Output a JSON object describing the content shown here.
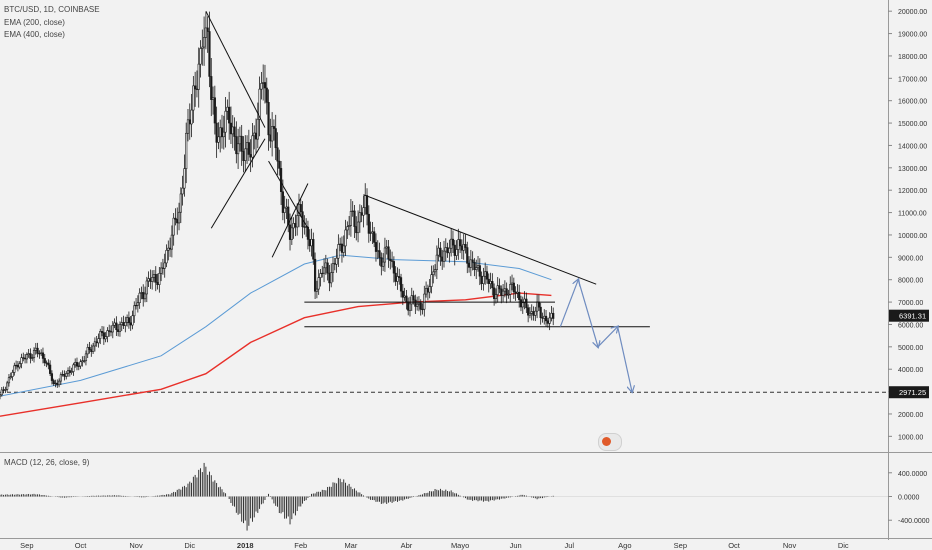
{
  "header": {
    "symbol": "BTC/USD, 1D, COINBASE",
    "indicator_1": "EMA (200, close)",
    "indicator_2": "EMA (400, close)",
    "macd": "MACD (12, 26, close, 9)"
  },
  "colors": {
    "background": "#f2f2f2",
    "candle": "#1a1a1a",
    "ema200": "#5b9bd5",
    "ema400": "#e8302a",
    "forecast": "#6f8cc0",
    "price_tag_bg": "#1a1a1a"
  },
  "chart_data": [
    {
      "type": "candlestick",
      "y_axis": {
        "ticks": [
          1000,
          2000,
          3000,
          4000,
          5000,
          6000,
          7000,
          8000,
          9000,
          10000,
          11000,
          12000,
          13000,
          14000,
          15000,
          16000,
          17000,
          18000,
          19000,
          20000
        ],
        "tick_labels": [
          "1000.00",
          "2000.00",
          "3000.00",
          "4000.00",
          "5000.00",
          "6000.00",
          "7000.00",
          "8000.00",
          "9000.00",
          "10000.00",
          "11000.00",
          "12000.00",
          "13000.00",
          "14000.00",
          "15000.00",
          "16000.00",
          "17000.00",
          "18000.00",
          "19000.00",
          "20000.00"
        ],
        "ylim": [
          300,
          20500
        ]
      },
      "x_axis": {
        "labels": [
          "Sep",
          "Oct",
          "Nov",
          "Dic",
          "2018",
          "Feb",
          "Mar",
          "Abr",
          "Mayo",
          "Jun",
          "Jul",
          "Ago",
          "Sep",
          "Oct",
          "Nov",
          "Dic"
        ],
        "label_days": [
          15,
          45,
          76,
          106,
          137,
          168,
          196,
          227,
          257,
          288,
          318,
          349,
          380,
          410,
          441,
          471
        ]
      },
      "price_tags": [
        {
          "label": "6391.31",
          "value": 6391.31
        },
        {
          "label": "2971.25",
          "value": 2971.25
        }
      ],
      "closes": [
        {
          "day": 0,
          "value": 2800
        },
        {
          "day": 10,
          "value": 4300
        },
        {
          "day": 20,
          "value": 4800
        },
        {
          "day": 25,
          "value": 4500
        },
        {
          "day": 30,
          "value": 3300
        },
        {
          "day": 38,
          "value": 3900
        },
        {
          "day": 45,
          "value": 4300
        },
        {
          "day": 55,
          "value": 5400
        },
        {
          "day": 65,
          "value": 5900
        },
        {
          "day": 72,
          "value": 6100
        },
        {
          "day": 78,
          "value": 7200
        },
        {
          "day": 84,
          "value": 8000
        },
        {
          "day": 90,
          "value": 8200
        },
        {
          "day": 95,
          "value": 9800
        },
        {
          "day": 100,
          "value": 11000
        },
        {
          "day": 104,
          "value": 14000
        },
        {
          "day": 108,
          "value": 16500
        },
        {
          "day": 112,
          "value": 17500
        },
        {
          "day": 114,
          "value": 19500
        },
        {
          "day": 116,
          "value": 19000
        },
        {
          "day": 118,
          "value": 16000
        },
        {
          "day": 120,
          "value": 14800
        },
        {
          "day": 124,
          "value": 14500
        },
        {
          "day": 128,
          "value": 15500
        },
        {
          "day": 132,
          "value": 13800
        },
        {
          "day": 136,
          "value": 14000
        },
        {
          "day": 140,
          "value": 13500
        },
        {
          "day": 144,
          "value": 15500
        },
        {
          "day": 147,
          "value": 17000
        },
        {
          "day": 150,
          "value": 15000
        },
        {
          "day": 154,
          "value": 14000
        },
        {
          "day": 158,
          "value": 11500
        },
        {
          "day": 162,
          "value": 10000
        },
        {
          "day": 166,
          "value": 11000
        },
        {
          "day": 170,
          "value": 10500
        },
        {
          "day": 174,
          "value": 9500
        },
        {
          "day": 176,
          "value": 7600
        },
        {
          "day": 180,
          "value": 8500
        },
        {
          "day": 184,
          "value": 8200
        },
        {
          "day": 188,
          "value": 9000
        },
        {
          "day": 192,
          "value": 9800
        },
        {
          "day": 196,
          "value": 10800
        },
        {
          "day": 200,
          "value": 10500
        },
        {
          "day": 204,
          "value": 11400
        },
        {
          "day": 208,
          "value": 9800
        },
        {
          "day": 212,
          "value": 8900
        },
        {
          "day": 216,
          "value": 9200
        },
        {
          "day": 220,
          "value": 8500
        },
        {
          "day": 224,
          "value": 7500
        },
        {
          "day": 228,
          "value": 6900
        },
        {
          "day": 232,
          "value": 7000
        },
        {
          "day": 236,
          "value": 6800
        },
        {
          "day": 240,
          "value": 7900
        },
        {
          "day": 244,
          "value": 8900
        },
        {
          "day": 248,
          "value": 9300
        },
        {
          "day": 252,
          "value": 9400
        },
        {
          "day": 256,
          "value": 9600
        },
        {
          "day": 260,
          "value": 9200
        },
        {
          "day": 264,
          "value": 8600
        },
        {
          "day": 268,
          "value": 8300
        },
        {
          "day": 272,
          "value": 8000
        },
        {
          "day": 276,
          "value": 7500
        },
        {
          "day": 280,
          "value": 7400
        },
        {
          "day": 284,
          "value": 7600
        },
        {
          "day": 288,
          "value": 7500
        },
        {
          "day": 292,
          "value": 6900
        },
        {
          "day": 296,
          "value": 6500
        },
        {
          "day": 300,
          "value": 6700
        },
        {
          "day": 304,
          "value": 6300
        },
        {
          "day": 307,
          "value": 6100
        },
        {
          "day": 309,
          "value": 6391
        }
      ],
      "series": [
        {
          "name": "EMA (200, close)",
          "points": [
            {
              "day": 0,
              "value": 2800
            },
            {
              "day": 45,
              "value": 3500
            },
            {
              "day": 90,
              "value": 4600
            },
            {
              "day": 115,
              "value": 5900
            },
            {
              "day": 140,
              "value": 7400
            },
            {
              "day": 170,
              "value": 8700
            },
            {
              "day": 190,
              "value": 9100
            },
            {
              "day": 220,
              "value": 8900
            },
            {
              "day": 260,
              "value": 8800
            },
            {
              "day": 290,
              "value": 8500
            },
            {
              "day": 308,
              "value": 8000
            }
          ]
        },
        {
          "name": "EMA (400, close)",
          "points": [
            {
              "day": 0,
              "value": 1900
            },
            {
              "day": 45,
              "value": 2500
            },
            {
              "day": 90,
              "value": 3100
            },
            {
              "day": 115,
              "value": 3800
            },
            {
              "day": 140,
              "value": 5200
            },
            {
              "day": 170,
              "value": 6300
            },
            {
              "day": 200,
              "value": 6800
            },
            {
              "day": 230,
              "value": 7000
            },
            {
              "day": 260,
              "value": 7100
            },
            {
              "day": 290,
              "value": 7400
            },
            {
              "day": 308,
              "value": 7300
            }
          ]
        }
      ],
      "trendlines": [
        {
          "from": {
            "day": 115,
            "value": 20000
          },
          "to": {
            "day": 148,
            "value": 14800
          }
        },
        {
          "from": {
            "day": 118,
            "value": 10300
          },
          "to": {
            "day": 148,
            "value": 14300
          }
        },
        {
          "from": {
            "day": 150,
            "value": 13300
          },
          "to": {
            "day": 172,
            "value": 10300
          }
        },
        {
          "from": {
            "day": 152,
            "value": 9000
          },
          "to": {
            "day": 172,
            "value": 12300
          }
        },
        {
          "from": {
            "day": 203,
            "value": 11800
          },
          "to": {
            "day": 333,
            "value": 7800
          }
        },
        {
          "from": {
            "day": 170,
            "value": 7000
          },
          "to": {
            "day": 310,
            "value": 7000
          }
        },
        {
          "from": {
            "day": 170,
            "value": 5900
          },
          "to": {
            "day": 363,
            "value": 5900
          }
        }
      ],
      "forecast_path": [
        {
          "day": 313,
          "value": 5900
        },
        {
          "day": 323,
          "value": 8000
        },
        {
          "day": 334,
          "value": 5000
        },
        {
          "day": 345,
          "value": 5900
        },
        {
          "day": 353,
          "value": 3000
        }
      ],
      "horizontal_dashed": 2971.25
    },
    {
      "type": "bar",
      "title": "MACD (12, 26, close, 9)",
      "y_axis": {
        "ticks": [
          400,
          0,
          -400
        ],
        "tick_labels": [
          "400.0000",
          "0.0000",
          "-400.0000"
        ],
        "ylim": [
          -700,
          700
        ]
      },
      "points": [
        {
          "day": 0,
          "value": 30
        },
        {
          "day": 20,
          "value": 40
        },
        {
          "day": 35,
          "value": -20
        },
        {
          "day": 50,
          "value": 10
        },
        {
          "day": 65,
          "value": 20
        },
        {
          "day": 80,
          "value": -15
        },
        {
          "day": 95,
          "value": 40
        },
        {
          "day": 105,
          "value": 200
        },
        {
          "day": 114,
          "value": 520
        },
        {
          "day": 120,
          "value": 250
        },
        {
          "day": 126,
          "value": 50
        },
        {
          "day": 132,
          "value": -250
        },
        {
          "day": 138,
          "value": -520
        },
        {
          "day": 144,
          "value": -250
        },
        {
          "day": 150,
          "value": 40
        },
        {
          "day": 156,
          "value": -250
        },
        {
          "day": 162,
          "value": -420
        },
        {
          "day": 168,
          "value": -150
        },
        {
          "day": 174,
          "value": 40
        },
        {
          "day": 182,
          "value": 120
        },
        {
          "day": 190,
          "value": 300
        },
        {
          "day": 198,
          "value": 120
        },
        {
          "day": 206,
          "value": -40
        },
        {
          "day": 214,
          "value": -120
        },
        {
          "day": 224,
          "value": -70
        },
        {
          "day": 234,
          "value": 20
        },
        {
          "day": 244,
          "value": 120
        },
        {
          "day": 252,
          "value": 90
        },
        {
          "day": 262,
          "value": -60
        },
        {
          "day": 272,
          "value": -80
        },
        {
          "day": 282,
          "value": -30
        },
        {
          "day": 292,
          "value": 30
        },
        {
          "day": 300,
          "value": -40
        },
        {
          "day": 309,
          "value": 10
        }
      ]
    }
  ]
}
